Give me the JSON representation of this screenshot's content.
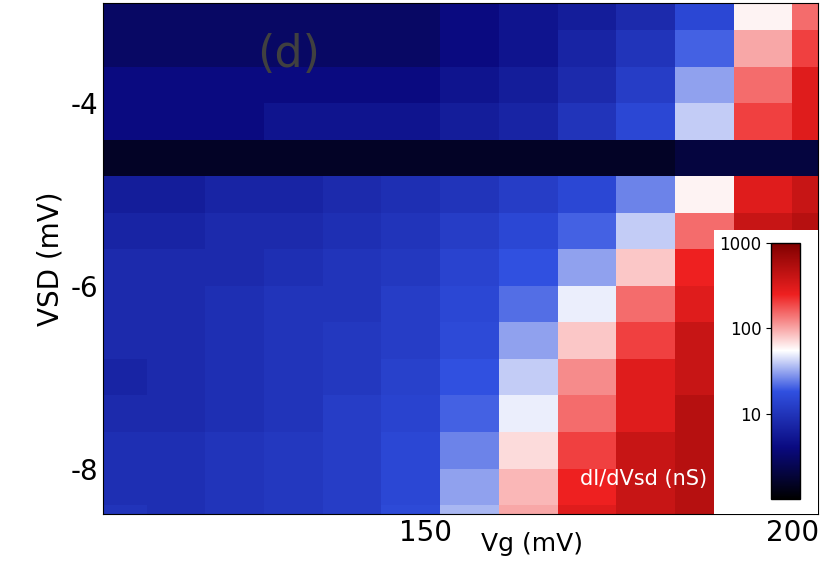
{
  "chart_data": {
    "type": "heatmap",
    "panel_label": "(d)",
    "x_label": "Vg (mV)",
    "y_label": "VSD (mV)",
    "colorbar_label": "dI/dVsd (nS)",
    "xlim": [
      106,
      203.5
    ],
    "ylim": [
      -8.5,
      -2.9
    ],
    "xticks": [
      150,
      200
    ],
    "yticks": [
      -4,
      -6,
      -8
    ],
    "log": "colorbar",
    "colorbar_range": [
      1,
      1000
    ],
    "colorbar_ticks": [
      10,
      100,
      1000
    ],
    "x": [
      108,
      116,
      124,
      132,
      140,
      148,
      156,
      164,
      172,
      180,
      188,
      196,
      204
    ],
    "y": [
      -3.0,
      -3.4,
      -3.8,
      -4.2,
      -4.6,
      -5.0,
      -5.4,
      -5.8,
      -6.2,
      -6.6,
      -7.0,
      -7.4,
      -7.8,
      -8.2,
      -8.6
    ],
    "cells": [
      [
        3,
        3,
        3,
        3,
        3,
        3,
        4,
        5,
        6,
        8,
        15,
        60,
        150
      ],
      [
        3,
        3,
        3,
        3,
        3,
        3,
        4,
        5,
        7,
        10,
        20,
        100,
        200
      ],
      [
        4,
        4,
        4,
        4,
        4,
        4,
        5,
        6,
        8,
        12,
        30,
        150,
        300
      ],
      [
        4,
        4,
        4,
        5,
        5,
        5,
        6,
        7,
        10,
        15,
        40,
        200,
        300
      ],
      [
        1.5,
        1.5,
        1.5,
        1.5,
        1.5,
        1.5,
        1.5,
        1.5,
        1.5,
        1.5,
        2,
        2,
        2
      ],
      [
        6,
        6,
        7,
        7,
        8,
        9,
        10,
        12,
        15,
        25,
        60,
        300,
        400
      ],
      [
        7,
        7,
        8,
        8,
        9,
        10,
        12,
        15,
        20,
        40,
        150,
        400,
        500
      ],
      [
        8,
        8,
        8,
        9,
        10,
        11,
        14,
        18,
        30,
        80,
        250,
        500,
        500
      ],
      [
        8,
        8,
        9,
        10,
        10,
        12,
        15,
        22,
        50,
        150,
        300,
        500,
        500
      ],
      [
        8,
        8,
        9,
        10,
        11,
        12,
        16,
        30,
        80,
        200,
        400,
        500,
        500
      ],
      [
        7,
        8,
        9,
        10,
        11,
        13,
        18,
        40,
        120,
        300,
        400,
        500,
        600
      ],
      [
        8,
        8,
        9,
        10,
        12,
        14,
        20,
        50,
        150,
        300,
        500,
        500,
        600
      ],
      [
        9,
        9,
        10,
        11,
        12,
        15,
        25,
        70,
        200,
        400,
        500,
        600,
        600
      ],
      [
        9,
        9,
        10,
        11,
        12,
        15,
        30,
        90,
        250,
        400,
        500,
        600,
        700
      ],
      [
        10,
        9,
        10,
        11,
        12,
        16,
        35,
        100,
        300,
        400,
        500,
        600,
        700
      ]
    ]
  }
}
